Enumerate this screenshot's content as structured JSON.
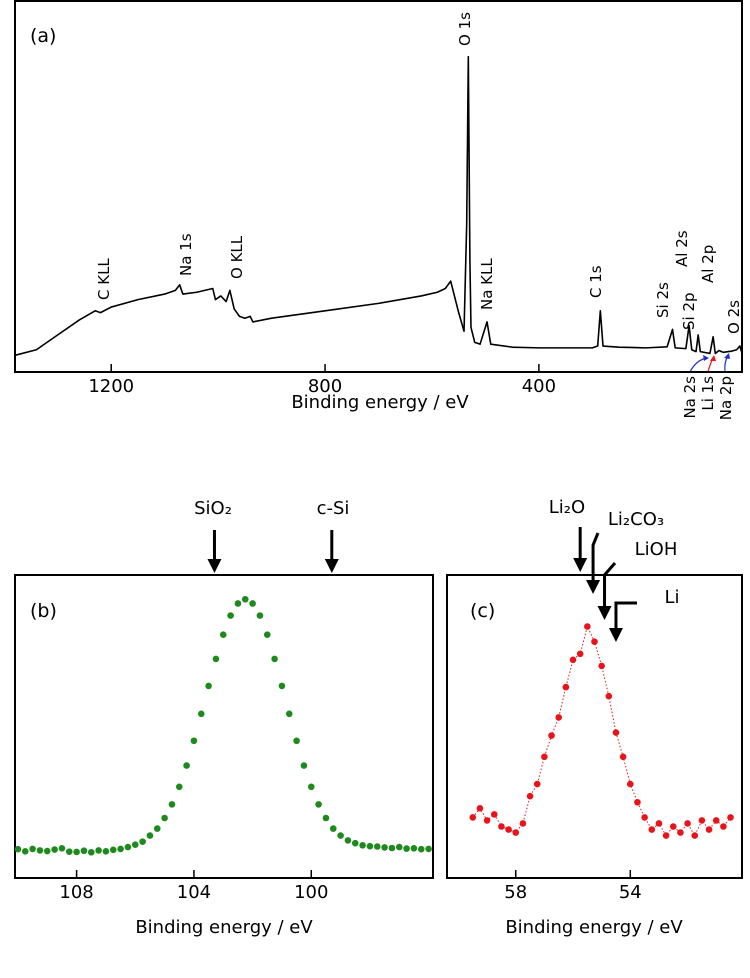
{
  "chart_data": [
    {
      "type": "line",
      "label": "(a)",
      "xlabel": "Binding energy / eV",
      "color": "#000000",
      "xlim": [
        1380,
        20
      ],
      "ylim": [
        0,
        100
      ],
      "xticks": [
        1200,
        800,
        400
      ],
      "x": [
        1380,
        1340,
        1300,
        1260,
        1230,
        1220,
        1200,
        1150,
        1100,
        1080,
        1072,
        1066,
        1040,
        1010,
        1005,
        995,
        985,
        978,
        970,
        960,
        950,
        940,
        935,
        900,
        800,
        700,
        620,
        590,
        575,
        565,
        550,
        540,
        535,
        532,
        529,
        527,
        520,
        510,
        497,
        490,
        450,
        400,
        300,
        290,
        285,
        280,
        250,
        200,
        160,
        150,
        145,
        125,
        119,
        114,
        106,
        102,
        98,
        80,
        74,
        70,
        63,
        55,
        40,
        30,
        24,
        20
      ],
      "values": [
        4.5,
        6,
        10,
        14,
        16.5,
        16,
        17.5,
        19.5,
        21,
        22,
        23.5,
        21,
        21.5,
        22.5,
        19.5,
        20.5,
        19,
        22,
        17,
        15,
        14.5,
        15,
        13.5,
        14.5,
        16.5,
        18.5,
        20.5,
        21.5,
        22.5,
        24.5,
        16,
        11,
        40,
        85,
        30,
        12,
        8,
        7.5,
        13.5,
        7.5,
        6.7,
        6.5,
        6.5,
        7,
        16.5,
        7,
        6.7,
        6.5,
        6.8,
        11.5,
        6.5,
        6.3,
        12.5,
        6,
        5.5,
        10,
        5.5,
        5,
        9.5,
        5,
        5.8,
        5.3,
        5.6,
        6,
        7,
        5
      ],
      "annotations": [
        {
          "text": "C KLL",
          "color": "#000000"
        },
        {
          "text": "Na 1s",
          "color": "#000000"
        },
        {
          "text": "O KLL",
          "color": "#000000"
        },
        {
          "text": "O 1s",
          "color": "#000000"
        },
        {
          "text": "Na KLL",
          "color": "#000000"
        },
        {
          "text": "C 1s",
          "color": "#000000"
        },
        {
          "text": "Si 2s",
          "color": "#000000"
        },
        {
          "text": "Al 2s",
          "color": "#000000"
        },
        {
          "text": "Si 2p",
          "color": "#1e8a1e"
        },
        {
          "text": "Al 2p",
          "color": "#000000"
        },
        {
          "text": "O 2s",
          "color": "#000000"
        },
        {
          "text": "Na 2s",
          "color": "#000000"
        },
        {
          "text": "Li 1s",
          "color": "#e8141c"
        },
        {
          "text": "Na 2p",
          "color": "#000000"
        }
      ]
    },
    {
      "type": "scatter",
      "label": "(b)",
      "xlabel": "Binding energy / eV",
      "color": "#1e8a1e",
      "xlim": [
        110.1,
        95.85
      ],
      "ylim": [
        0,
        100
      ],
      "xticks": [
        108,
        104,
        100
      ],
      "x": [
        110,
        109.75,
        109.5,
        109.25,
        109,
        108.75,
        108.5,
        108.25,
        108,
        107.75,
        107.5,
        107.25,
        107,
        106.75,
        106.5,
        106.25,
        106,
        105.75,
        105.5,
        105.25,
        105,
        104.75,
        104.5,
        104.25,
        104,
        103.75,
        103.5,
        103.25,
        103,
        102.75,
        102.5,
        102.25,
        102,
        101.75,
        101.5,
        101.25,
        101,
        100.75,
        100.5,
        100.25,
        100,
        99.75,
        99.5,
        99.25,
        99,
        98.75,
        98.5,
        98.25,
        98,
        97.75,
        97.5,
        97.25,
        97,
        96.75,
        96.5,
        96.25,
        96
      ],
      "values": [
        9.5,
        8.8,
        9.6,
        9.1,
        8.9,
        9.4,
        9.8,
        8.7,
        8.6,
        9,
        8.5,
        9.1,
        8.8,
        9.3,
        9.6,
        10.2,
        11,
        12,
        14,
        16.3,
        19.8,
        24.3,
        30.1,
        37.1,
        45.3,
        54.2,
        63.4,
        72.3,
        80.3,
        86.6,
        90.6,
        92,
        90.6,
        86.6,
        80.3,
        72.3,
        63.4,
        54.2,
        45.3,
        37.1,
        30.1,
        24.3,
        19.8,
        16.3,
        14,
        12.4,
        11.5,
        10.8,
        10.5,
        10.4,
        10.1,
        9.9,
        10.2,
        9.7,
        9.8,
        9.5,
        9.6
      ],
      "markers": [
        {
          "label": "SiO₂",
          "x": 103.3
        },
        {
          "label": "c-Si",
          "x": 99.3
        }
      ]
    },
    {
      "type": "scatter",
      "label": "(c)",
      "xlabel": "Binding energy / eV",
      "color": "#e8141c",
      "connect": true,
      "xlim": [
        60.4,
        50.1
      ],
      "ylim": [
        0,
        100
      ],
      "xticks": [
        58,
        54
      ],
      "x": [
        59.5,
        59.25,
        59,
        58.75,
        58.5,
        58.25,
        58,
        57.75,
        57.5,
        57.25,
        57,
        56.75,
        56.5,
        56.25,
        56,
        55.75,
        55.5,
        55.25,
        55,
        54.75,
        54.5,
        54.25,
        54,
        53.75,
        53.5,
        53.25,
        53,
        52.75,
        52.5,
        52.25,
        52,
        51.75,
        51.5,
        51.25,
        51,
        50.75,
        50.5
      ],
      "values": [
        20,
        23,
        19,
        21,
        17,
        16,
        15,
        18,
        27,
        31,
        40,
        47,
        53,
        63,
        72,
        74,
        83,
        78,
        70,
        60,
        48,
        40,
        31,
        25,
        20,
        16,
        18,
        14,
        17,
        15,
        18,
        14,
        19,
        16,
        19,
        17,
        20
      ],
      "markers": [
        {
          "label": "Li₂O",
          "x": 55.75
        },
        {
          "label": "Li₂CO₃",
          "x": 55.3
        },
        {
          "label": "LiOH",
          "x": 54.9
        },
        {
          "label": "Li",
          "x": 54.5
        }
      ]
    }
  ]
}
